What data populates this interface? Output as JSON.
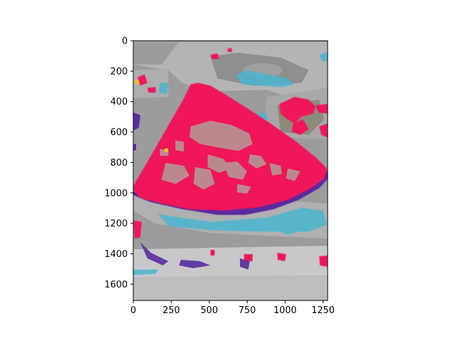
{
  "figure": {
    "description_kind": "matplotlib image axes",
    "image_extent": {
      "x": [
        0,
        1280
      ],
      "y": [
        0,
        1707
      ]
    },
    "x_axis": {
      "ticks": [
        {
          "value": 0,
          "label": "0"
        },
        {
          "value": 250,
          "label": "250"
        },
        {
          "value": 500,
          "label": "500"
        },
        {
          "value": 750,
          "label": "750"
        },
        {
          "value": 1000,
          "label": "1000"
        },
        {
          "value": 1250,
          "label": "1250"
        }
      ]
    },
    "y_axis": {
      "inverted": true,
      "ticks": [
        {
          "value": 0,
          "label": "0"
        },
        {
          "value": 200,
          "label": "200"
        },
        {
          "value": 400,
          "label": "400"
        },
        {
          "value": 600,
          "label": "600"
        },
        {
          "value": 800,
          "label": "800"
        },
        {
          "value": 1000,
          "label": "1000"
        },
        {
          "value": 1200,
          "label": "1200"
        },
        {
          "value": 1400,
          "label": "1400"
        },
        {
          "value": 1600,
          "label": "1600"
        }
      ]
    },
    "colors": {
      "background_photo": "#9a9a9a",
      "watermelon_mask": "#f0145a",
      "rind_mask": "#5a2ca0",
      "tray_mask": "#4ab6d0",
      "accent_yellow": "#e8c020"
    }
  }
}
